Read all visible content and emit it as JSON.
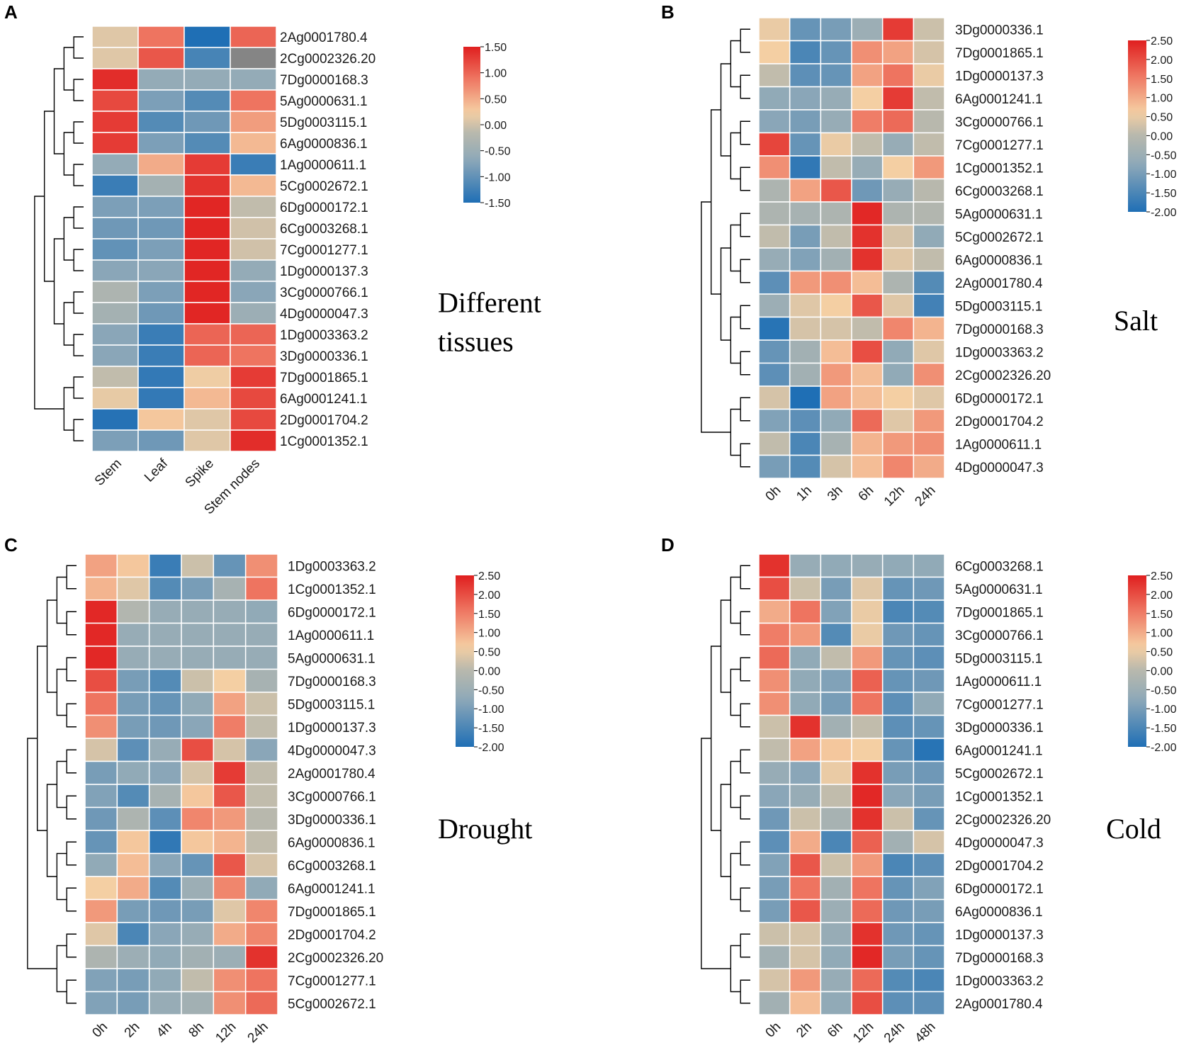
{
  "chart_data": [
    {
      "panel": "A",
      "type": "heatmap",
      "title": "Different tissues",
      "title_lines": [
        "Different",
        "tissues"
      ],
      "columns": [
        "Stem",
        "Leaf",
        "Spike",
        "Stem nodes"
      ],
      "rows": [
        "2Ag0001780.4",
        "2Cg0002326.20",
        "7Dg0000168.3",
        "5Ag0000631.1",
        "5Dg0003115.1",
        "6Ag0000836.1",
        "1Ag0000611.1",
        "5Cg0002672.1",
        "6Dg0000172.1",
        "6Cg0003268.1",
        "7Cg0001277.1",
        "1Dg0000137.3",
        "3Cg0000766.1",
        "4Dg0000047.3",
        "1Dg0003363.2",
        "3Dg0000336.1",
        "7Dg0001865.1",
        "6Ag0001241.1",
        "2Dg0001704.2",
        "1Cg0001352.1"
      ],
      "values": [
        [
          0.1,
          0.9,
          -1.5,
          1.0
        ],
        [
          0.1,
          1.1,
          -1.2,
          null
        ],
        [
          1.4,
          -0.6,
          -0.6,
          -0.6
        ],
        [
          1.2,
          -0.8,
          -1.1,
          0.9
        ],
        [
          1.3,
          -1.1,
          -0.9,
          0.6
        ],
        [
          1.3,
          -0.8,
          -1.1,
          0.4
        ],
        [
          -0.6,
          0.5,
          1.3,
          -1.3
        ],
        [
          -1.3,
          -0.4,
          1.35,
          0.4
        ],
        [
          -0.8,
          -0.8,
          1.45,
          -0.1
        ],
        [
          -0.9,
          -0.9,
          1.45,
          0.0
        ],
        [
          -1.0,
          -0.8,
          1.45,
          0.0
        ],
        [
          -0.7,
          -0.7,
          1.45,
          -0.6
        ],
        [
          -0.3,
          -0.8,
          1.45,
          -0.7
        ],
        [
          -0.4,
          -0.9,
          1.45,
          -0.5
        ],
        [
          -0.7,
          -1.3,
          1.0,
          1.0
        ],
        [
          -0.7,
          -1.3,
          1.0,
          0.9
        ],
        [
          -0.1,
          -1.35,
          0.2,
          1.3
        ],
        [
          0.15,
          -1.35,
          0.4,
          1.2
        ],
        [
          -1.45,
          0.3,
          0.1,
          1.2
        ],
        [
          -0.8,
          -0.9,
          0.1,
          1.4
        ]
      ],
      "missing_color": "#858585",
      "colorbar": {
        "ticks": [
          "1.50",
          "1.00",
          "0.50",
          "0.00",
          "-0.50",
          "-1.00",
          "-1.50"
        ],
        "range": [
          -1.5,
          1.5
        ]
      }
    },
    {
      "panel": "B",
      "type": "heatmap",
      "title": "Salt",
      "title_lines": [
        "Salt"
      ],
      "columns": [
        "0h",
        "1h",
        "3h",
        "6h",
        "12h",
        "24h"
      ],
      "rows": [
        "3Dg0000336.1",
        "7Dg0001865.1",
        "1Dg0000137.3",
        "6Ag0001241.1",
        "3Cg0000766.1",
        "7Cg0001277.1",
        "1Cg0001352.1",
        "6Cg0003268.1",
        "5Ag0000631.1",
        "5Cg0002672.1",
        "6Ag0000836.1",
        "2Ag0001780.4",
        "5Dg0003115.1",
        "7Dg0000168.3",
        "1Dg0003363.2",
        "2Cg0002326.20",
        "6Dg0000172.1",
        "2Dg0001704.2",
        "1Ag0000611.1",
        "4Dg0000047.3"
      ],
      "values": [
        [
          0.5,
          -1.2,
          -1.0,
          -0.5,
          2.2,
          0.2
        ],
        [
          0.6,
          -1.5,
          -1.2,
          1.3,
          1.1,
          0.3
        ],
        [
          0.1,
          -1.3,
          -1.2,
          1.1,
          1.6,
          0.5
        ],
        [
          -0.7,
          -0.8,
          -0.6,
          0.6,
          2.2,
          0.1
        ],
        [
          -0.8,
          -1.0,
          -0.6,
          1.5,
          1.7,
          0.0
        ],
        [
          2.1,
          -1.2,
          0.5,
          0.1,
          -0.6,
          0.1
        ],
        [
          1.3,
          -1.8,
          0.1,
          -0.6,
          0.6,
          1.2
        ],
        [
          -0.2,
          1.1,
          1.9,
          -1.1,
          -0.6,
          0.0
        ],
        [
          -0.2,
          -0.3,
          -0.2,
          2.4,
          -0.2,
          -0.1
        ],
        [
          0.1,
          -1.0,
          0.1,
          2.3,
          0.3,
          -0.7
        ],
        [
          -0.6,
          -0.9,
          -0.4,
          2.3,
          0.4,
          0.1
        ],
        [
          -1.3,
          1.2,
          1.3,
          0.8,
          -0.2,
          -1.4
        ],
        [
          -0.5,
          0.4,
          0.6,
          1.9,
          0.4,
          -1.6
        ],
        [
          -1.9,
          0.3,
          0.3,
          0.1,
          1.4,
          0.9
        ],
        [
          -1.2,
          -0.4,
          0.8,
          2.0,
          -0.7,
          0.4
        ],
        [
          -1.3,
          -0.4,
          1.2,
          0.8,
          -0.7,
          1.3
        ],
        [
          0.3,
          -2.0,
          1.1,
          0.8,
          0.6,
          0.4
        ],
        [
          -0.9,
          -1.3,
          -0.7,
          1.7,
          0.4,
          1.2
        ],
        [
          0.1,
          -1.5,
          -0.3,
          0.9,
          1.2,
          1.3
        ],
        [
          -1.0,
          -1.4,
          0.3,
          0.8,
          1.4,
          1.0
        ]
      ],
      "colorbar": {
        "ticks": [
          "2.50",
          "2.00",
          "1.50",
          "1.00",
          "0.50",
          "0.00",
          "-0.50",
          "-1.00",
          "-1.50",
          "-2.00"
        ],
        "range": [
          -2.0,
          2.5
        ]
      }
    },
    {
      "panel": "C",
      "type": "heatmap",
      "title": "Drought",
      "title_lines": [
        "Drought"
      ],
      "columns": [
        "0h",
        "2h",
        "4h",
        "8h",
        "12h",
        "24h"
      ],
      "rows": [
        "1Dg0003363.2",
        "1Cg0001352.1",
        "6Dg0000172.1",
        "1Ag0000611.1",
        "5Ag0000631.1",
        "7Dg0000168.3",
        "5Dg0003115.1",
        "1Dg0000137.3",
        "4Dg0000047.3",
        "2Ag0001780.4",
        "3Cg0000766.1",
        "3Dg0000336.1",
        "6Ag0000836.1",
        "6Cg0003268.1",
        "6Ag0001241.1",
        "7Dg0001865.1",
        "2Dg0001704.2",
        "2Cg0002326.20",
        "7Cg0001277.1",
        "5Cg0002672.1"
      ],
      "values": [
        [
          1.1,
          0.7,
          -1.7,
          0.2,
          -1.2,
          1.3
        ],
        [
          0.9,
          0.4,
          -1.4,
          -1.0,
          -0.3,
          1.6
        ],
        [
          2.4,
          -0.1,
          -0.6,
          -0.6,
          -0.6,
          -0.7
        ],
        [
          2.4,
          -0.6,
          -0.6,
          -0.6,
          -0.6,
          -0.6
        ],
        [
          2.4,
          -0.6,
          -0.6,
          -0.6,
          -0.6,
          -0.6
        ],
        [
          2.0,
          -1.0,
          -1.4,
          0.2,
          0.6,
          -0.3
        ],
        [
          1.6,
          -1.0,
          -1.2,
          -0.7,
          1.1,
          0.2
        ],
        [
          1.3,
          -1.0,
          -1.1,
          -0.8,
          1.5,
          0.1
        ],
        [
          0.3,
          -1.3,
          -0.6,
          2.0,
          0.3,
          -0.8
        ],
        [
          -1.0,
          -0.7,
          -0.8,
          0.3,
          2.2,
          0.1
        ],
        [
          -0.9,
          -1.4,
          -0.3,
          0.7,
          1.9,
          0.1
        ],
        [
          -1.1,
          -0.2,
          -1.3,
          1.4,
          1.2,
          0.0
        ],
        [
          -1.2,
          0.7,
          -1.8,
          0.7,
          0.9,
          0.1
        ],
        [
          -0.7,
          0.8,
          -0.8,
          -1.2,
          1.9,
          0.3
        ],
        [
          0.6,
          1.0,
          -1.4,
          -0.5,
          1.4,
          -0.7
        ],
        [
          1.2,
          -1.0,
          -1.1,
          -1.0,
          0.4,
          1.4
        ],
        [
          0.4,
          -1.5,
          -0.8,
          -0.6,
          1.0,
          1.4
        ],
        [
          -0.2,
          -0.5,
          -0.7,
          -0.4,
          -0.5,
          2.3
        ],
        [
          -0.9,
          -1.0,
          -0.7,
          0.1,
          1.3,
          1.6
        ],
        [
          -0.9,
          -1.0,
          -0.6,
          -0.4,
          1.3,
          1.7
        ]
      ],
      "colorbar": {
        "ticks": [
          "2.50",
          "2.00",
          "1.50",
          "1.00",
          "0.50",
          "0.00",
          "-0.50",
          "-1.00",
          "-1.50",
          "-2.00"
        ],
        "range": [
          -2.0,
          2.5
        ]
      }
    },
    {
      "panel": "D",
      "type": "heatmap",
      "title": "Cold",
      "title_lines": [
        "Cold"
      ],
      "columns": [
        "0h",
        "2h",
        "6h",
        "12h",
        "24h",
        "48h"
      ],
      "rows": [
        "6Cg0003268.1",
        "5Ag0000631.1",
        "7Dg0001865.1",
        "3Cg0000766.1",
        "5Dg0003115.1",
        "1Ag0000611.1",
        "7Cg0001277.1",
        "3Dg0000336.1",
        "6Ag0001241.1",
        "5Cg0002672.1",
        "1Cg0001352.1",
        "2Cg0002326.20",
        "4Dg0000047.3",
        "2Dg0001704.2",
        "6Dg0000172.1",
        "6Ag0000836.1",
        "1Dg0000137.3",
        "7Dg0000168.3",
        "1Dg0003363.2",
        "2Ag0001780.4"
      ],
      "values": [
        [
          2.3,
          -0.6,
          -0.7,
          -0.6,
          -0.7,
          -0.7
        ],
        [
          2.0,
          0.2,
          -1.0,
          0.4,
          -1.2,
          -1.1
        ],
        [
          1.0,
          1.6,
          -0.9,
          0.5,
          -1.5,
          -1.4
        ],
        [
          1.5,
          1.2,
          -1.4,
          0.5,
          -1.1,
          -1.2
        ],
        [
          1.7,
          -0.7,
          0.1,
          1.2,
          -1.2,
          -1.3
        ],
        [
          1.3,
          -0.7,
          -0.9,
          1.8,
          -1.2,
          -1.1
        ],
        [
          1.3,
          -0.7,
          -1.0,
          1.6,
          -1.3,
          -0.7
        ],
        [
          0.2,
          2.3,
          -0.4,
          0.1,
          -1.3,
          -1.2
        ],
        [
          0.1,
          1.1,
          0.7,
          0.6,
          -1.2,
          -1.9
        ],
        [
          -0.6,
          -0.8,
          0.5,
          2.3,
          -1.0,
          -1.1
        ],
        [
          -0.8,
          -0.6,
          0.1,
          2.4,
          -0.8,
          -1.0
        ],
        [
          -1.1,
          0.2,
          -0.3,
          2.3,
          0.2,
          -1.2
        ],
        [
          -1.3,
          1.0,
          -1.5,
          1.8,
          -0.4,
          0.3
        ],
        [
          -0.9,
          1.9,
          0.2,
          1.2,
          -1.5,
          -1.3
        ],
        [
          -1.0,
          1.6,
          -0.4,
          1.6,
          -1.2,
          -0.9
        ],
        [
          -1.0,
          1.9,
          -0.5,
          1.7,
          -1.1,
          -1.0
        ],
        [
          0.2,
          0.3,
          -0.6,
          2.3,
          -1.1,
          -1.2
        ],
        [
          -0.4,
          0.3,
          -0.7,
          2.4,
          -1.0,
          -1.2
        ],
        [
          0.3,
          1.2,
          -0.6,
          1.7,
          -1.4,
          -1.5
        ],
        [
          -0.4,
          0.8,
          -0.7,
          2.0,
          -1.3,
          -1.3
        ]
      ],
      "colorbar": {
        "ticks": [
          "2.50",
          "2.00",
          "1.50",
          "1.00",
          "0.50",
          "0.00",
          "-0.50",
          "-1.00",
          "-1.50",
          "-2.00"
        ],
        "range": [
          -2.0,
          2.5
        ]
      }
    }
  ],
  "colors": {
    "low": "#1f6fb5",
    "mid_low": "#8fa9b8",
    "neutral": "#b9b9ad",
    "mid_high": "#f5cfa3",
    "high_mid": "#ef7c66",
    "high": "#e01f1f"
  }
}
